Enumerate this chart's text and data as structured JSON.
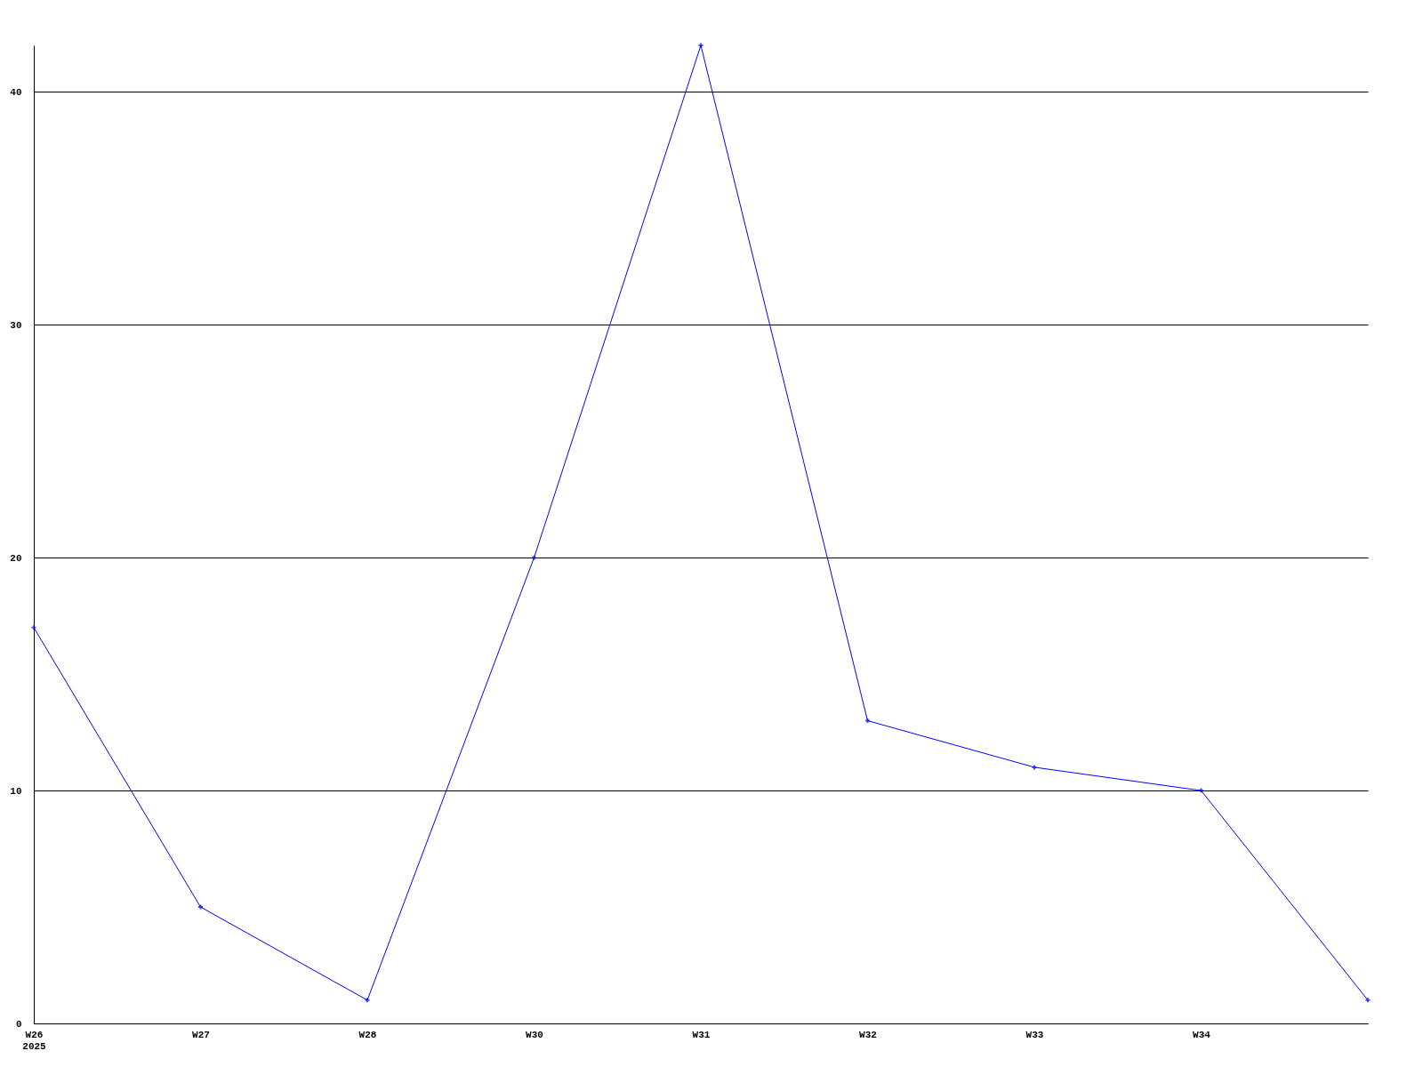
{
  "chart_data": {
    "type": "line",
    "categories": [
      "W26\n2025",
      "W27",
      "W28",
      "W30",
      "W31",
      "W32",
      "W33",
      "W34",
      null
    ],
    "series": [
      {
        "color": "#0000ff",
        "values": [
          17,
          5,
          1,
          20,
          42,
          13,
          11,
          10,
          1
        ]
      }
    ],
    "ylim": [
      0,
      42
    ],
    "yticks": [
      0,
      10,
      20,
      30,
      40
    ],
    "grid": "y",
    "marker": "cross",
    "line_style": "solid"
  }
}
